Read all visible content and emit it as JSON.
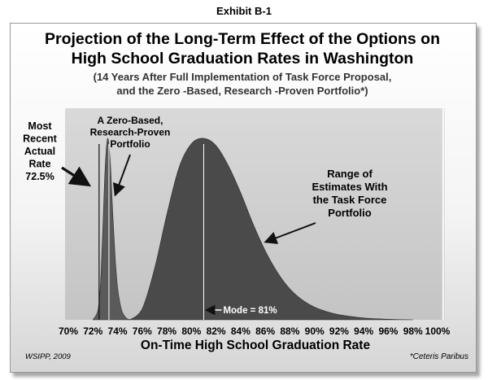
{
  "exhibit": "Exhibit B-1",
  "title_line1": "Projection of the Long-Term Effect of the Options on",
  "title_line2": "High School Graduation Rates in Washington",
  "subtitle_line1": "(14 Years After Full Implementation of Task Force Proposal,",
  "subtitle_line2": "and the Zero -Based, Research -Proven Portfolio*)",
  "source": "WSIPP, 2009",
  "footnote": "*Ceteris Paribus",
  "colors": {
    "plot_bg": "#d3d3d3",
    "task_force_fill": "#4a4a4a",
    "zero_based_fill": "#5a5a5a"
  },
  "chart_data": {
    "type": "area",
    "xlabel": "On-Time High School Graduation Rate",
    "ylabel": "",
    "xlim": [
      70,
      100
    ],
    "x_ticks": [
      "70%",
      "72%",
      "74%",
      "76%",
      "78%",
      "80%",
      "82%",
      "84%",
      "86%",
      "88%",
      "90%",
      "92%",
      "94%",
      "96%",
      "98%",
      "100%"
    ],
    "x_tick_values": [
      70,
      72,
      74,
      76,
      78,
      80,
      82,
      84,
      86,
      88,
      90,
      92,
      94,
      96,
      98,
      100
    ],
    "grid": false,
    "series": [
      {
        "name": "A Zero-Based, Research-Proven Portfolio",
        "x": [
          72.0,
          72.4,
          72.6,
          72.8,
          73.0,
          73.2,
          73.4,
          73.6,
          73.8,
          74.0,
          74.2,
          74.4,
          74.7,
          75.0
        ],
        "y": [
          0.0,
          0.05,
          0.18,
          0.5,
          0.85,
          1.0,
          0.88,
          0.6,
          0.35,
          0.18,
          0.09,
          0.04,
          0.01,
          0.0
        ]
      },
      {
        "name": "Range of Estimates With the Task Force Portfolio",
        "x": [
          75.0,
          76.0,
          77.0,
          78.0,
          79.0,
          80.0,
          81.0,
          82.0,
          83.0,
          84.0,
          85.0,
          86.0,
          87.0,
          88.0,
          89.0,
          90.0,
          91.0,
          92.0,
          94.0,
          96.0,
          98.0
        ],
        "y": [
          0.0,
          0.06,
          0.28,
          0.58,
          0.84,
          0.97,
          1.0,
          0.96,
          0.85,
          0.7,
          0.53,
          0.38,
          0.26,
          0.17,
          0.11,
          0.07,
          0.045,
          0.028,
          0.01,
          0.003,
          0.0
        ]
      }
    ],
    "reference_lines": [
      {
        "name": "Most Recent Actual Rate",
        "x": 72.5
      },
      {
        "name": "A Zero-Based, Research-Proven Portfolio",
        "x": 73.3
      },
      {
        "name": "Mode",
        "x": 81.0
      }
    ],
    "annotations": {
      "most_recent": [
        "Most",
        "Recent",
        "Actual",
        "Rate",
        "72.5%"
      ],
      "zero_based": [
        "A Zero-Based,",
        "Research-Proven",
        "Portfolio"
      ],
      "task_force": [
        "Range of",
        "Estimates With",
        "the Task Force",
        "Portfolio"
      ],
      "mode": "Mode = 81%"
    }
  }
}
